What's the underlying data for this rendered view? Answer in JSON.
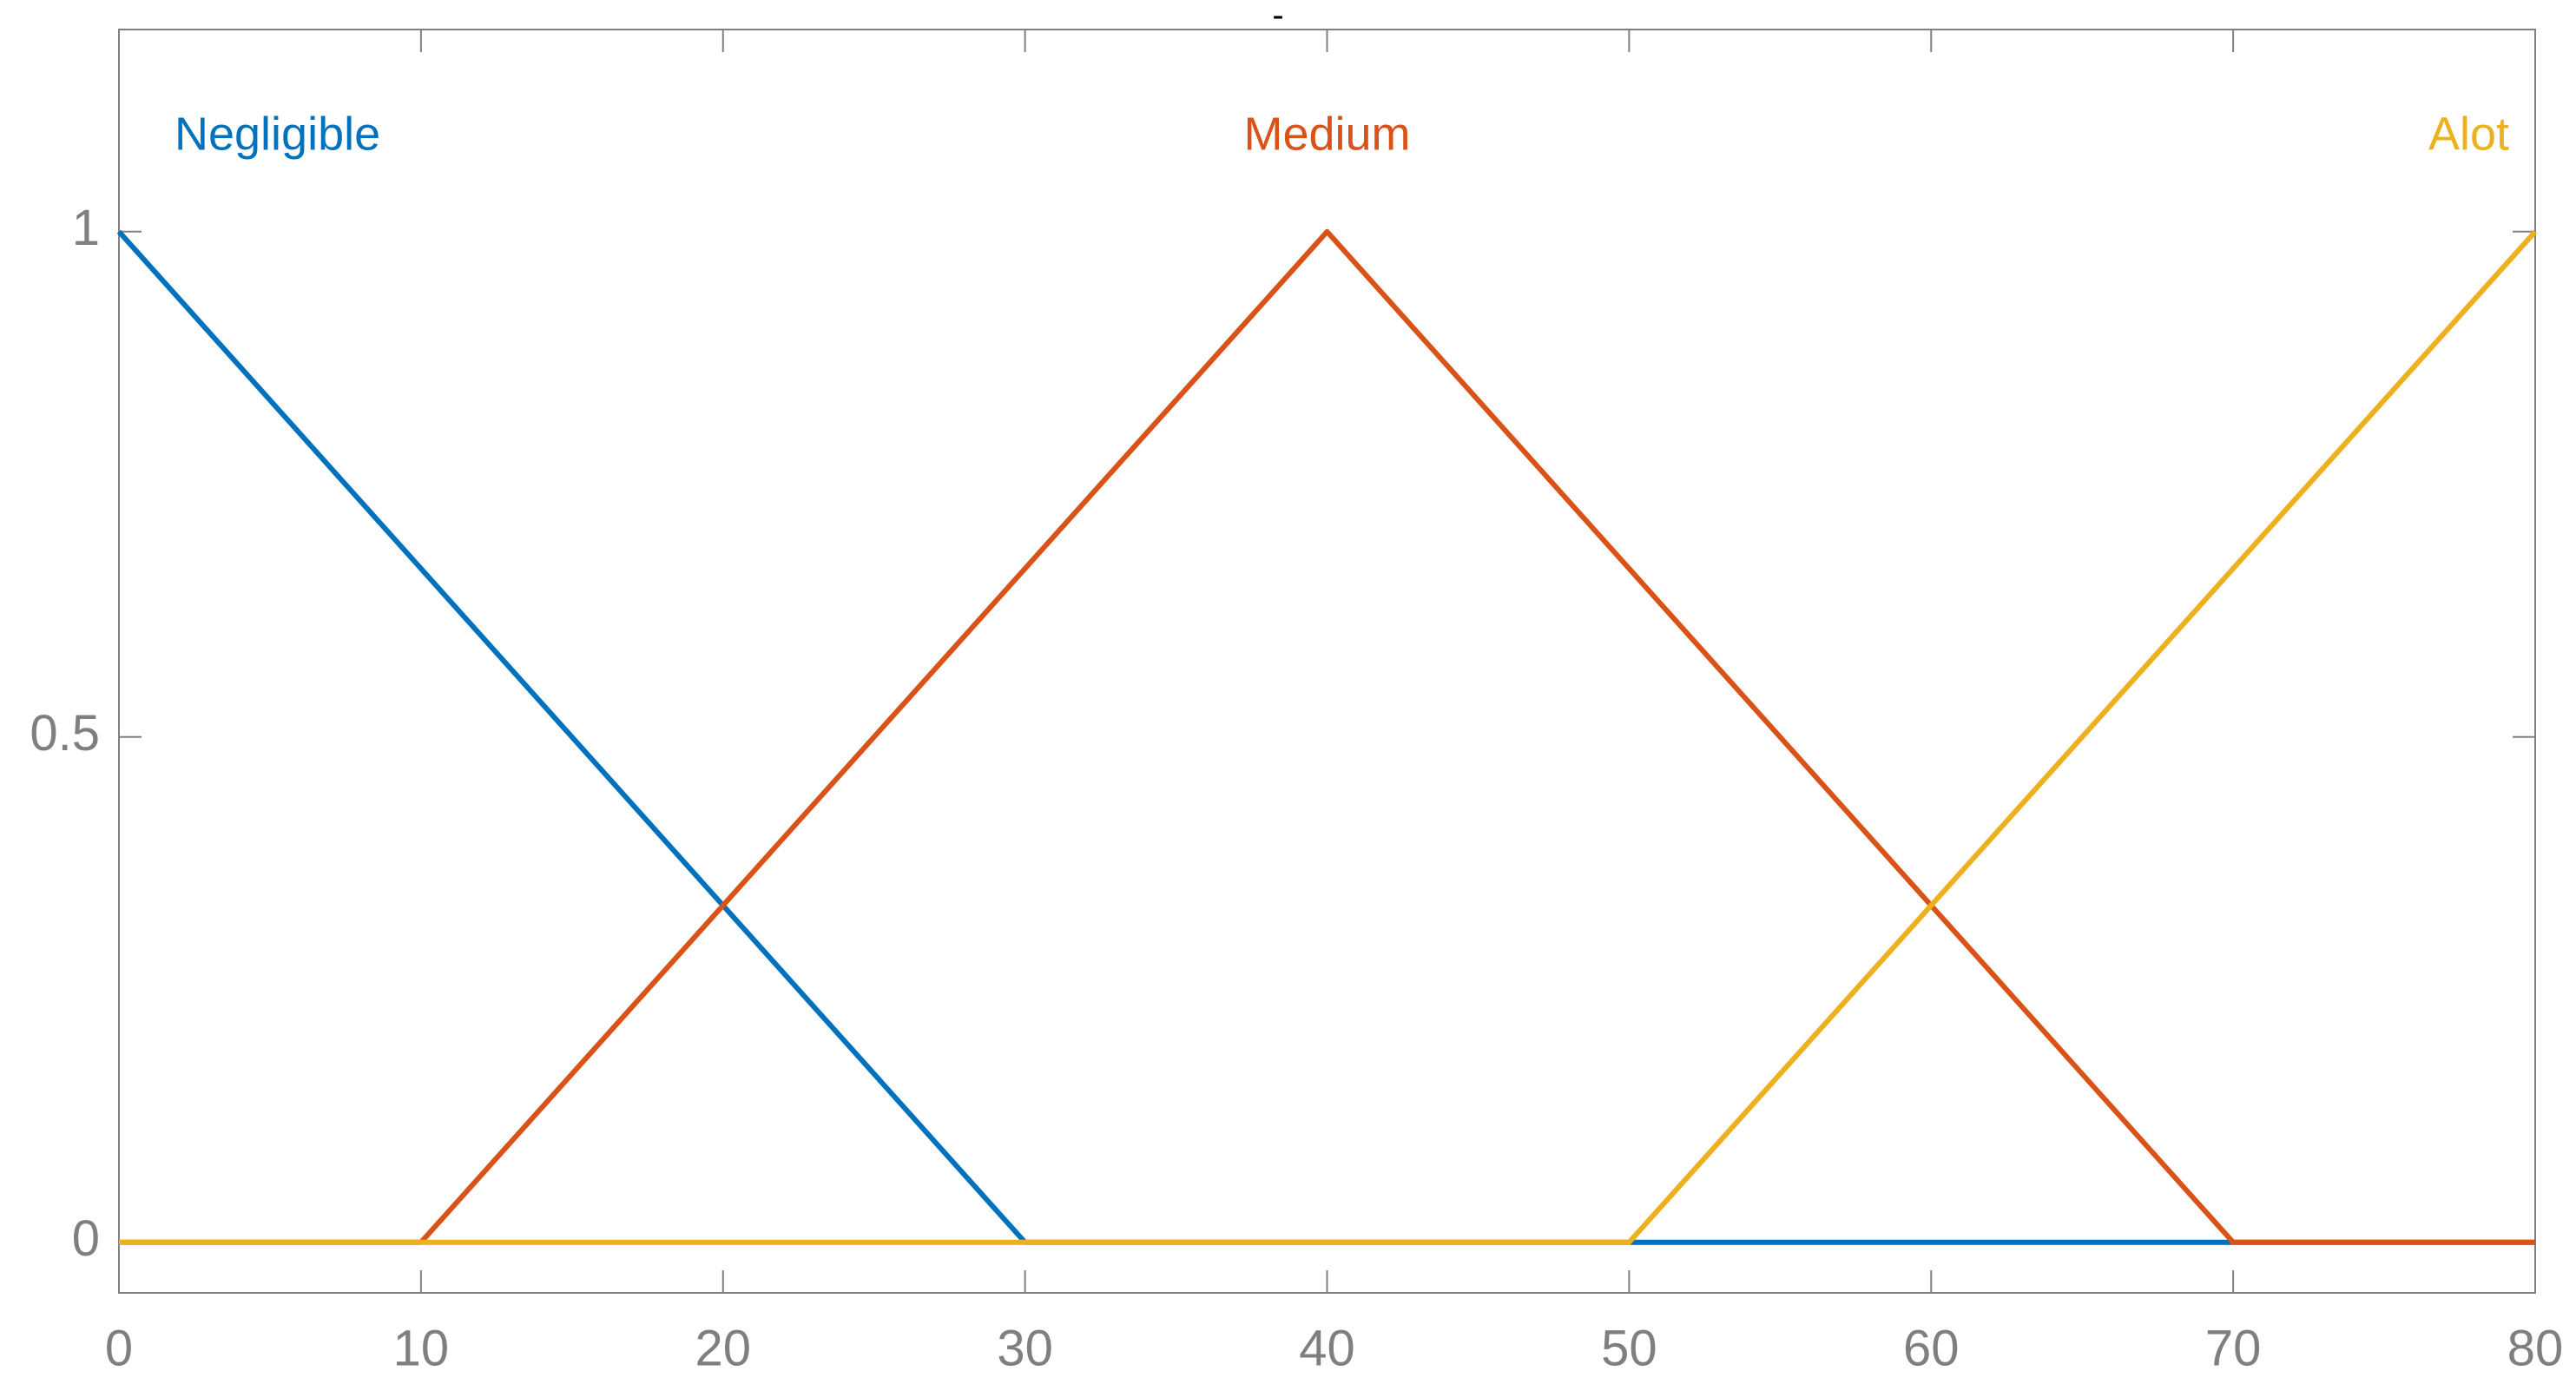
{
  "chart_data": {
    "type": "line",
    "title": "-",
    "series": [
      {
        "name": "Negligible",
        "color": "#0072bd",
        "x": [
          0,
          30,
          80
        ],
        "values": [
          1,
          0,
          0
        ]
      },
      {
        "name": "Medium",
        "color": "#d95319",
        "x": [
          0,
          10,
          40,
          70,
          80
        ],
        "values": [
          0,
          0,
          1,
          0,
          0
        ]
      },
      {
        "name": "Alot",
        "color": "#edb120",
        "x": [
          0,
          50,
          80
        ],
        "values": [
          0,
          0,
          1
        ]
      }
    ],
    "xlim": [
      0,
      80
    ],
    "xticks": [
      0,
      10,
      20,
      30,
      40,
      50,
      60,
      70,
      80
    ],
    "ylim": [
      -0.05,
      1.2
    ],
    "yticks": [
      0,
      0.5,
      1
    ],
    "grid": false
  }
}
